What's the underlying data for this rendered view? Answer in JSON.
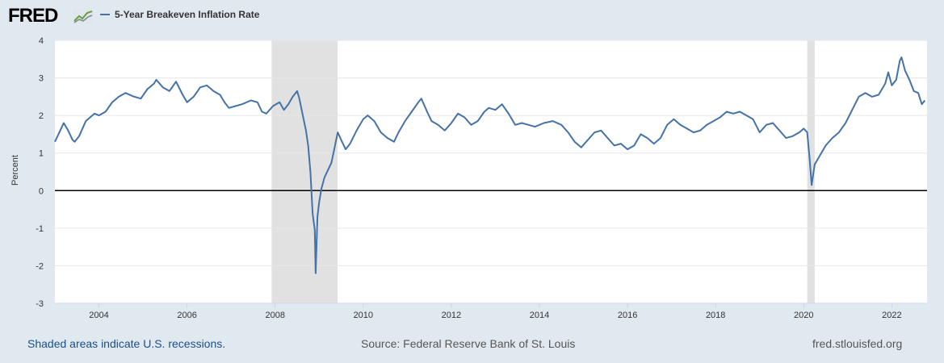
{
  "header": {
    "logo_text": "FRED",
    "logo_icon": "line-chart-icon",
    "series_name": "5-Year Breakeven Inflation Rate"
  },
  "footer": {
    "recession_note": "Shaded areas indicate U.S. recessions.",
    "source": "Source: Federal Reserve Bank of St. Louis",
    "url": "fred.stlouisfed.org"
  },
  "colors": {
    "background": "#e1e9f0",
    "plot": "#ffffff",
    "series": "#4572a7",
    "recession": "#e1e1e1",
    "zero_line": "#000000"
  },
  "chart_data": {
    "type": "line",
    "title": "",
    "xlabel": "",
    "ylabel": "Percent",
    "ylim": [
      -3,
      4
    ],
    "yticks": [
      4,
      3,
      2,
      1,
      0,
      -1,
      -2,
      -3
    ],
    "xlim": [
      2003.0,
      2022.8
    ],
    "xticks": [
      "2004",
      "2006",
      "2008",
      "2010",
      "2012",
      "2014",
      "2016",
      "2018",
      "2020",
      "2022"
    ],
    "grid": true,
    "legend": "top-left",
    "recessions": [
      [
        2007.92,
        2009.42
      ],
      [
        2020.08,
        2020.25
      ]
    ],
    "series": [
      {
        "name": "5-Year Breakeven Inflation Rate",
        "points": [
          [
            2003.0,
            1.3
          ],
          [
            2003.1,
            1.55
          ],
          [
            2003.2,
            1.8
          ],
          [
            2003.3,
            1.6
          ],
          [
            2003.4,
            1.35
          ],
          [
            2003.45,
            1.3
          ],
          [
            2003.55,
            1.45
          ],
          [
            2003.7,
            1.85
          ],
          [
            2003.9,
            2.05
          ],
          [
            2004.0,
            2.0
          ],
          [
            2004.15,
            2.1
          ],
          [
            2004.3,
            2.35
          ],
          [
            2004.45,
            2.5
          ],
          [
            2004.6,
            2.6
          ],
          [
            2004.8,
            2.5
          ],
          [
            2004.95,
            2.45
          ],
          [
            2005.1,
            2.7
          ],
          [
            2005.25,
            2.85
          ],
          [
            2005.3,
            2.95
          ],
          [
            2005.45,
            2.75
          ],
          [
            2005.6,
            2.65
          ],
          [
            2005.75,
            2.9
          ],
          [
            2005.9,
            2.55
          ],
          [
            2006.0,
            2.35
          ],
          [
            2006.15,
            2.5
          ],
          [
            2006.3,
            2.75
          ],
          [
            2006.45,
            2.8
          ],
          [
            2006.6,
            2.65
          ],
          [
            2006.75,
            2.55
          ],
          [
            2006.85,
            2.35
          ],
          [
            2006.95,
            2.2
          ],
          [
            2007.1,
            2.25
          ],
          [
            2007.25,
            2.3
          ],
          [
            2007.45,
            2.4
          ],
          [
            2007.6,
            2.35
          ],
          [
            2007.7,
            2.1
          ],
          [
            2007.8,
            2.05
          ],
          [
            2007.95,
            2.25
          ],
          [
            2008.1,
            2.35
          ],
          [
            2008.2,
            2.15
          ],
          [
            2008.3,
            2.3
          ],
          [
            2008.4,
            2.5
          ],
          [
            2008.5,
            2.65
          ],
          [
            2008.55,
            2.45
          ],
          [
            2008.62,
            2.05
          ],
          [
            2008.7,
            1.6
          ],
          [
            2008.75,
            1.2
          ],
          [
            2008.8,
            0.5
          ],
          [
            2008.85,
            -0.6
          ],
          [
            2008.9,
            -1.05
          ],
          [
            2008.92,
            -2.2
          ],
          [
            2008.96,
            -0.7
          ],
          [
            2009.0,
            -0.3
          ],
          [
            2009.05,
            0.05
          ],
          [
            2009.12,
            0.35
          ],
          [
            2009.2,
            0.55
          ],
          [
            2009.28,
            0.75
          ],
          [
            2009.35,
            1.15
          ],
          [
            2009.42,
            1.55
          ],
          [
            2009.5,
            1.35
          ],
          [
            2009.6,
            1.1
          ],
          [
            2009.7,
            1.25
          ],
          [
            2009.85,
            1.6
          ],
          [
            2010.0,
            1.9
          ],
          [
            2010.1,
            2.0
          ],
          [
            2010.25,
            1.85
          ],
          [
            2010.4,
            1.55
          ],
          [
            2010.55,
            1.4
          ],
          [
            2010.7,
            1.3
          ],
          [
            2010.8,
            1.55
          ],
          [
            2010.95,
            1.85
          ],
          [
            2011.1,
            2.1
          ],
          [
            2011.25,
            2.35
          ],
          [
            2011.32,
            2.45
          ],
          [
            2011.45,
            2.1
          ],
          [
            2011.55,
            1.85
          ],
          [
            2011.7,
            1.75
          ],
          [
            2011.85,
            1.6
          ],
          [
            2012.0,
            1.8
          ],
          [
            2012.15,
            2.05
          ],
          [
            2012.3,
            1.95
          ],
          [
            2012.45,
            1.75
          ],
          [
            2012.6,
            1.85
          ],
          [
            2012.75,
            2.1
          ],
          [
            2012.85,
            2.2
          ],
          [
            2013.0,
            2.15
          ],
          [
            2013.15,
            2.3
          ],
          [
            2013.3,
            2.05
          ],
          [
            2013.45,
            1.75
          ],
          [
            2013.6,
            1.8
          ],
          [
            2013.75,
            1.75
          ],
          [
            2013.9,
            1.7
          ],
          [
            2014.1,
            1.8
          ],
          [
            2014.3,
            1.85
          ],
          [
            2014.5,
            1.75
          ],
          [
            2014.65,
            1.55
          ],
          [
            2014.8,
            1.3
          ],
          [
            2014.95,
            1.15
          ],
          [
            2015.1,
            1.35
          ],
          [
            2015.25,
            1.55
          ],
          [
            2015.4,
            1.6
          ],
          [
            2015.55,
            1.4
          ],
          [
            2015.7,
            1.2
          ],
          [
            2015.85,
            1.25
          ],
          [
            2016.0,
            1.1
          ],
          [
            2016.15,
            1.2
          ],
          [
            2016.3,
            1.5
          ],
          [
            2016.45,
            1.4
          ],
          [
            2016.6,
            1.25
          ],
          [
            2016.75,
            1.4
          ],
          [
            2016.9,
            1.75
          ],
          [
            2017.05,
            1.9
          ],
          [
            2017.2,
            1.75
          ],
          [
            2017.35,
            1.65
          ],
          [
            2017.5,
            1.55
          ],
          [
            2017.65,
            1.6
          ],
          [
            2017.8,
            1.75
          ],
          [
            2017.95,
            1.85
          ],
          [
            2018.1,
            1.95
          ],
          [
            2018.25,
            2.1
          ],
          [
            2018.4,
            2.05
          ],
          [
            2018.55,
            2.1
          ],
          [
            2018.7,
            2.0
          ],
          [
            2018.85,
            1.9
          ],
          [
            2019.0,
            1.55
          ],
          [
            2019.15,
            1.75
          ],
          [
            2019.3,
            1.8
          ],
          [
            2019.45,
            1.6
          ],
          [
            2019.6,
            1.4
          ],
          [
            2019.75,
            1.45
          ],
          [
            2019.9,
            1.55
          ],
          [
            2020.0,
            1.65
          ],
          [
            2020.08,
            1.55
          ],
          [
            2020.13,
            0.9
          ],
          [
            2020.18,
            0.15
          ],
          [
            2020.25,
            0.7
          ],
          [
            2020.35,
            0.9
          ],
          [
            2020.5,
            1.2
          ],
          [
            2020.65,
            1.4
          ],
          [
            2020.8,
            1.55
          ],
          [
            2020.95,
            1.8
          ],
          [
            2021.1,
            2.15
          ],
          [
            2021.25,
            2.5
          ],
          [
            2021.4,
            2.6
          ],
          [
            2021.55,
            2.5
          ],
          [
            2021.7,
            2.55
          ],
          [
            2021.85,
            2.85
          ],
          [
            2021.92,
            3.15
          ],
          [
            2022.0,
            2.8
          ],
          [
            2022.1,
            2.95
          ],
          [
            2022.18,
            3.45
          ],
          [
            2022.22,
            3.55
          ],
          [
            2022.3,
            3.2
          ],
          [
            2022.4,
            2.95
          ],
          [
            2022.5,
            2.65
          ],
          [
            2022.6,
            2.6
          ],
          [
            2022.68,
            2.3
          ],
          [
            2022.75,
            2.4
          ]
        ]
      }
    ]
  }
}
